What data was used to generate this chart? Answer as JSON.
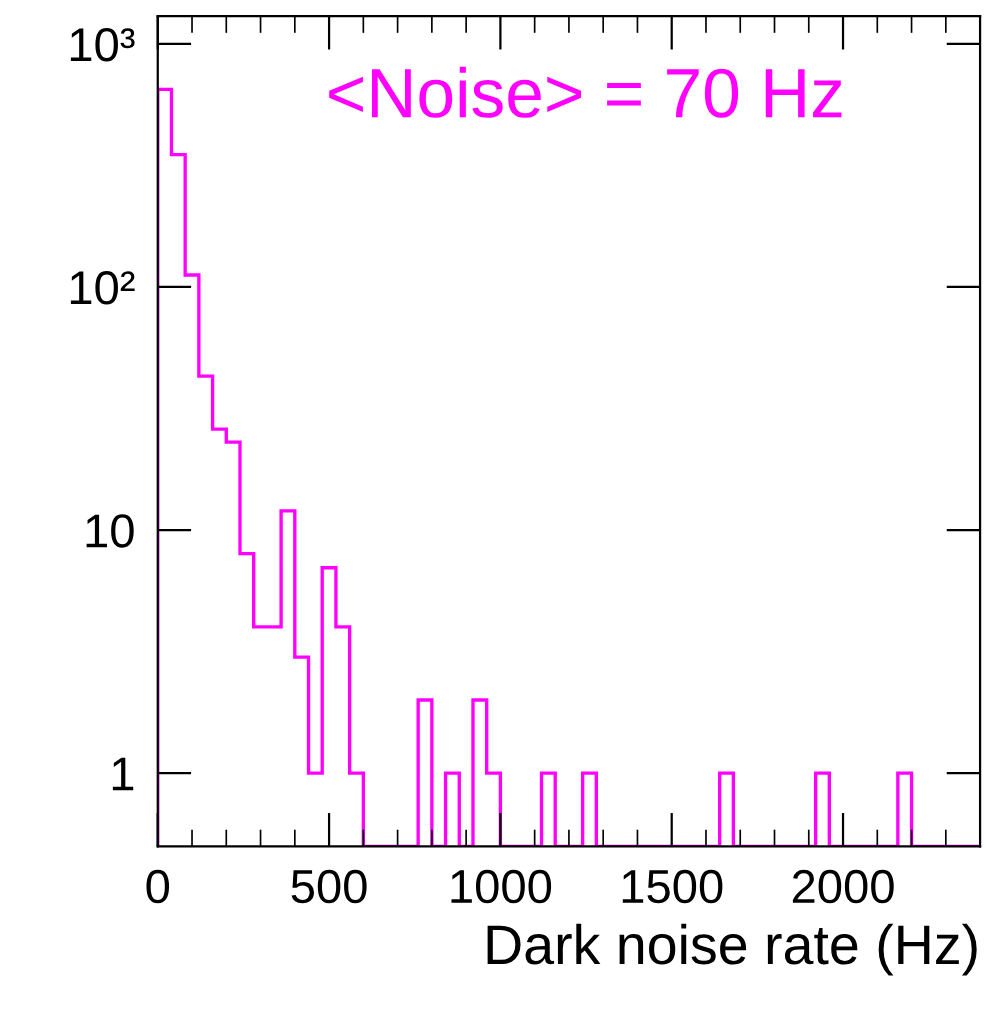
{
  "chart_data": {
    "type": "histogram",
    "xlabel": "Dark noise rate (Hz)",
    "annotations": [
      "<Noise> = 70 Hz"
    ],
    "bins": [
      0,
      40,
      80,
      120,
      160,
      200,
      240,
      280,
      320,
      360,
      400,
      440,
      480,
      520,
      560,
      600,
      640,
      680,
      720,
      760,
      800,
      840,
      880,
      920,
      960,
      1000,
      1040,
      1080,
      1120,
      1160,
      1200,
      1240,
      1280,
      1320,
      1360,
      1400,
      1440,
      1480,
      1520,
      1560,
      1600,
      1640,
      1680,
      1720,
      1760,
      1800,
      1840,
      1880,
      1920,
      1960,
      2000,
      2040,
      2080,
      2120,
      2160,
      2200,
      2240,
      2280,
      2320,
      2360,
      2400
    ],
    "values": [
      650,
      350,
      112,
      43,
      26,
      23,
      8,
      4,
      4,
      12,
      3,
      1,
      7,
      4,
      1,
      null,
      null,
      null,
      null,
      2,
      null,
      1,
      null,
      2,
      1,
      null,
      null,
      null,
      1,
      null,
      null,
      1,
      null,
      null,
      null,
      null,
      null,
      null,
      null,
      null,
      null,
      1,
      null,
      null,
      null,
      null,
      null,
      null,
      1,
      null,
      null,
      null,
      null,
      null,
      1,
      null,
      null,
      null,
      null,
      null
    ],
    "color": "#ff00ff",
    "log": "y",
    "xlim": [
      0,
      2400
    ],
    "xticks": [
      0,
      500,
      1000,
      1500,
      2000
    ],
    "ylim": [
      0.5,
      1300
    ],
    "yticks": [
      {
        "value": 1,
        "label": "1"
      },
      {
        "value": 10,
        "label": "10"
      },
      {
        "value": 100,
        "label": "10²"
      },
      {
        "value": 1000,
        "label": "10³"
      }
    ],
    "grid": false,
    "legend": false
  }
}
